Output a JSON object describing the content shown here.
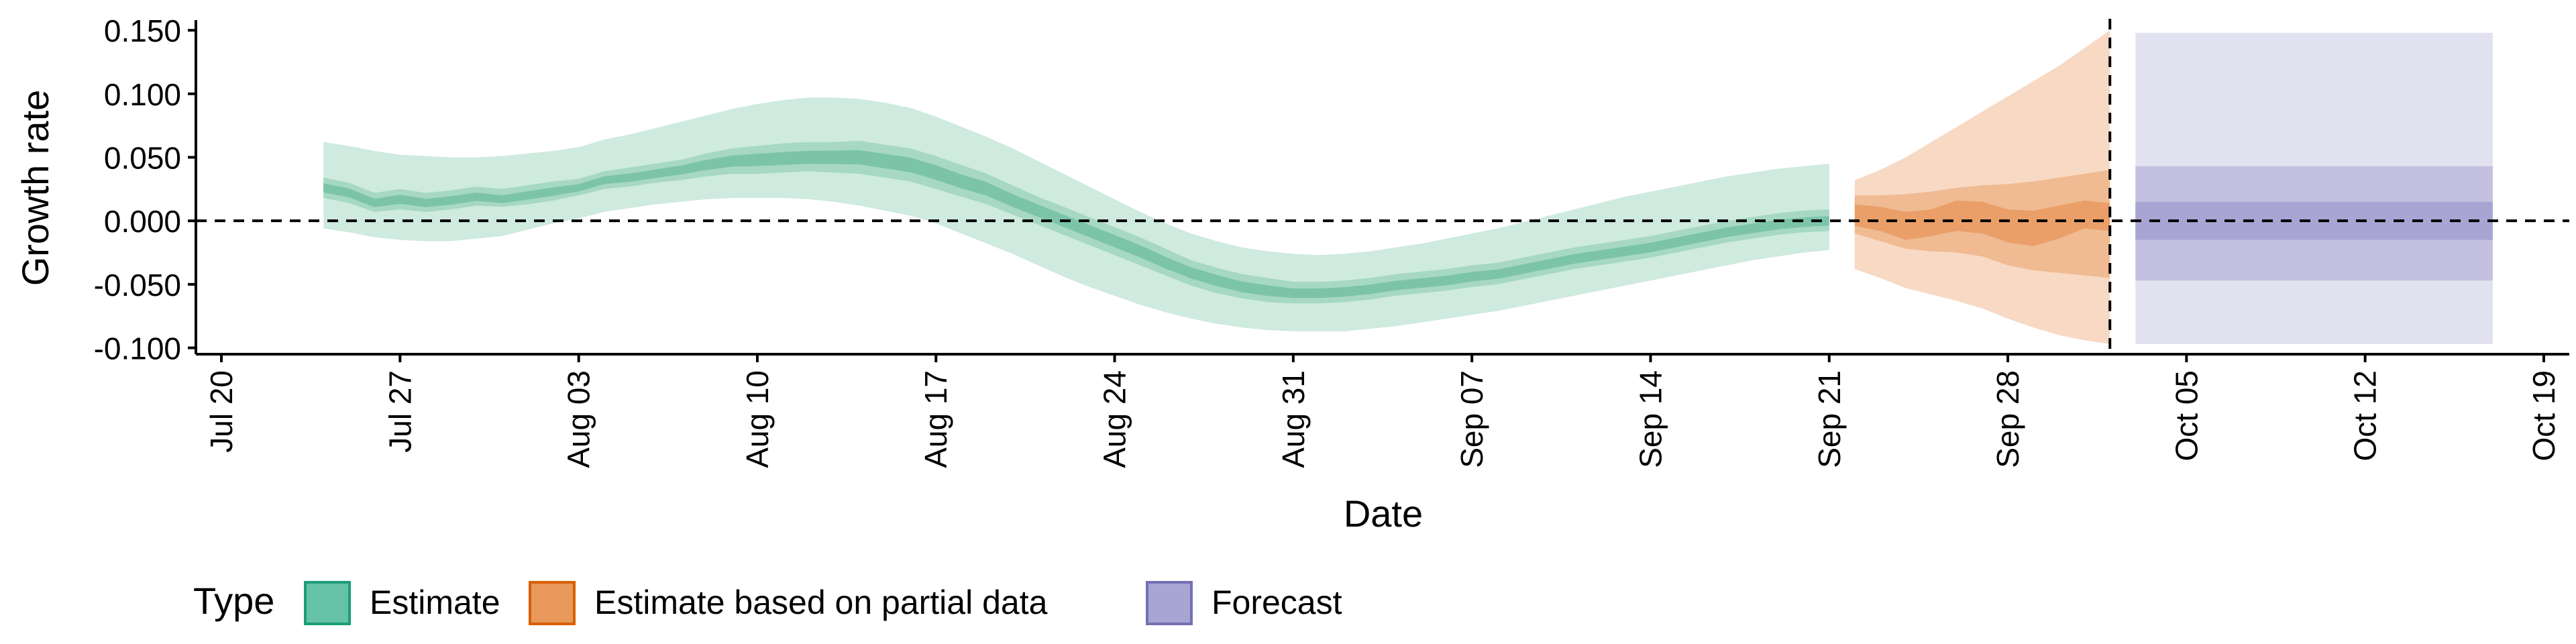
{
  "chart_data": {
    "type": "area",
    "xlabel": "Date",
    "ylabel": "Growth rate",
    "ylim": [
      -0.105,
      0.158
    ],
    "y_ticks": [
      -0.1,
      -0.05,
      0.0,
      0.05,
      0.1,
      0.15
    ],
    "y_tick_labels": [
      "-0.100",
      "-0.050",
      "0.000",
      "0.050",
      "0.100",
      "0.150"
    ],
    "x_ticks": [
      "2020-07-20",
      "2020-07-27",
      "2020-08-03",
      "2020-08-10",
      "2020-08-17",
      "2020-08-24",
      "2020-08-31",
      "2020-09-07",
      "2020-09-14",
      "2020-09-21",
      "2020-09-28",
      "2020-10-05",
      "2020-10-12",
      "2020-10-19"
    ],
    "x_tick_labels": [
      "Jul 20",
      "Jul 27",
      "Aug 03",
      "Aug 10",
      "Aug 17",
      "Aug 24",
      "Aug 31",
      "Sep 07",
      "Sep 14",
      "Sep 21",
      "Sep 28",
      "Oct 05",
      "Oct 12",
      "Oct 19"
    ],
    "xlim": [
      "2020-07-19",
      "2020-10-20"
    ],
    "reference_lines": {
      "horizontal_y": 0,
      "vertical_x": "2020-10-02",
      "style": "dashed"
    },
    "grid": false,
    "legend": {
      "title": "Type",
      "placement": "bottom-left",
      "entries": [
        {
          "label": "Estimate",
          "color": "#66c2a5",
          "border": "#1b9e77"
        },
        {
          "label": "Estimate based on partial data",
          "color": "#e9995b",
          "border": "#d95f02"
        },
        {
          "label": "Forecast",
          "color": "#a9a5d3",
          "border": "#7570b3"
        }
      ]
    },
    "series": [
      {
        "name": "Estimate",
        "colors": {
          "outer": "#cfeadf",
          "mid": "#a6d8c4",
          "inner": "#7cc4a9"
        },
        "x": [
          "2020-07-24",
          "2020-07-25",
          "2020-07-26",
          "2020-07-27",
          "2020-07-28",
          "2020-07-29",
          "2020-07-30",
          "2020-07-31",
          "2020-08-01",
          "2020-08-02",
          "2020-08-03",
          "2020-08-04",
          "2020-08-05",
          "2020-08-06",
          "2020-08-07",
          "2020-08-08",
          "2020-08-09",
          "2020-08-10",
          "2020-08-11",
          "2020-08-12",
          "2020-08-13",
          "2020-08-14",
          "2020-08-15",
          "2020-08-16",
          "2020-08-17",
          "2020-08-18",
          "2020-08-19",
          "2020-08-20",
          "2020-08-21",
          "2020-08-22",
          "2020-08-23",
          "2020-08-24",
          "2020-08-25",
          "2020-08-26",
          "2020-08-27",
          "2020-08-28",
          "2020-08-29",
          "2020-08-30",
          "2020-08-31",
          "2020-09-01",
          "2020-09-02",
          "2020-09-03",
          "2020-09-04",
          "2020-09-05",
          "2020-09-06",
          "2020-09-07",
          "2020-09-08",
          "2020-09-09",
          "2020-09-10",
          "2020-09-11",
          "2020-09-12",
          "2020-09-13",
          "2020-09-14",
          "2020-09-15",
          "2020-09-16",
          "2020-09-17",
          "2020-09-18",
          "2020-09-19",
          "2020-09-20",
          "2020-09-21"
        ],
        "median": [
          0.026,
          0.022,
          0.014,
          0.017,
          0.014,
          0.016,
          0.019,
          0.017,
          0.02,
          0.023,
          0.026,
          0.032,
          0.034,
          0.037,
          0.04,
          0.044,
          0.047,
          0.048,
          0.049,
          0.05,
          0.05,
          0.05,
          0.047,
          0.044,
          0.038,
          0.031,
          0.025,
          0.016,
          0.008,
          0.0,
          -0.008,
          -0.016,
          -0.024,
          -0.033,
          -0.041,
          -0.047,
          -0.052,
          -0.055,
          -0.057,
          -0.057,
          -0.056,
          -0.054,
          -0.051,
          -0.049,
          -0.047,
          -0.044,
          -0.042,
          -0.038,
          -0.034,
          -0.03,
          -0.027,
          -0.024,
          -0.021,
          -0.017,
          -0.013,
          -0.009,
          -0.006,
          -0.003,
          -0.001,
          0.0
        ],
        "q25": [
          0.018,
          0.014,
          0.007,
          0.009,
          0.007,
          0.009,
          0.012,
          0.011,
          0.013,
          0.016,
          0.02,
          0.025,
          0.027,
          0.03,
          0.032,
          0.035,
          0.037,
          0.037,
          0.038,
          0.039,
          0.038,
          0.037,
          0.034,
          0.031,
          0.025,
          0.019,
          0.013,
          0.005,
          -0.003,
          -0.011,
          -0.019,
          -0.027,
          -0.035,
          -0.043,
          -0.051,
          -0.057,
          -0.061,
          -0.064,
          -0.065,
          -0.065,
          -0.064,
          -0.062,
          -0.059,
          -0.057,
          -0.055,
          -0.052,
          -0.05,
          -0.046,
          -0.042,
          -0.038,
          -0.035,
          -0.032,
          -0.029,
          -0.025,
          -0.021,
          -0.017,
          -0.014,
          -0.011,
          -0.009,
          -0.008
        ],
        "q75": [
          0.034,
          0.03,
          0.022,
          0.025,
          0.022,
          0.024,
          0.027,
          0.025,
          0.028,
          0.031,
          0.033,
          0.039,
          0.042,
          0.045,
          0.048,
          0.053,
          0.057,
          0.059,
          0.061,
          0.062,
          0.062,
          0.063,
          0.06,
          0.057,
          0.051,
          0.044,
          0.037,
          0.028,
          0.019,
          0.011,
          0.003,
          -0.005,
          -0.013,
          -0.022,
          -0.031,
          -0.037,
          -0.042,
          -0.045,
          -0.048,
          -0.048,
          -0.047,
          -0.045,
          -0.042,
          -0.04,
          -0.038,
          -0.035,
          -0.033,
          -0.029,
          -0.025,
          -0.021,
          -0.018,
          -0.015,
          -0.012,
          -0.008,
          -0.004,
          0.0,
          0.003,
          0.006,
          0.008,
          0.009
        ],
        "q05": [
          -0.006,
          -0.009,
          -0.013,
          -0.015,
          -0.016,
          -0.016,
          -0.014,
          -0.012,
          -0.007,
          -0.002,
          0.002,
          0.007,
          0.01,
          0.013,
          0.015,
          0.017,
          0.018,
          0.018,
          0.018,
          0.017,
          0.015,
          0.012,
          0.008,
          0.004,
          -0.002,
          -0.01,
          -0.018,
          -0.026,
          -0.035,
          -0.044,
          -0.052,
          -0.059,
          -0.066,
          -0.072,
          -0.077,
          -0.081,
          -0.084,
          -0.086,
          -0.087,
          -0.087,
          -0.087,
          -0.085,
          -0.083,
          -0.08,
          -0.077,
          -0.074,
          -0.071,
          -0.067,
          -0.063,
          -0.059,
          -0.055,
          -0.051,
          -0.047,
          -0.043,
          -0.039,
          -0.035,
          -0.031,
          -0.028,
          -0.025,
          -0.023
        ],
        "q95": [
          0.062,
          0.059,
          0.055,
          0.052,
          0.051,
          0.05,
          0.05,
          0.051,
          0.053,
          0.055,
          0.058,
          0.064,
          0.068,
          0.073,
          0.078,
          0.083,
          0.088,
          0.092,
          0.095,
          0.097,
          0.097,
          0.096,
          0.093,
          0.089,
          0.082,
          0.074,
          0.066,
          0.057,
          0.047,
          0.037,
          0.027,
          0.017,
          0.007,
          -0.002,
          -0.01,
          -0.016,
          -0.021,
          -0.024,
          -0.026,
          -0.027,
          -0.026,
          -0.024,
          -0.021,
          -0.018,
          -0.014,
          -0.01,
          -0.006,
          -0.001,
          0.004,
          0.009,
          0.014,
          0.019,
          0.023,
          0.027,
          0.031,
          0.035,
          0.038,
          0.041,
          0.043,
          0.045
        ]
      },
      {
        "name": "Estimate based on partial data",
        "colors": {
          "outer": "#f8d9c4",
          "mid": "#f0bb92",
          "inner": "#ea9f69"
        },
        "x": [
          "2020-09-22",
          "2020-09-23",
          "2020-09-24",
          "2020-09-25",
          "2020-09-26",
          "2020-09-27",
          "2020-09-28",
          "2020-09-29",
          "2020-09-30",
          "2020-10-01",
          "2020-10-02"
        ],
        "median": [
          0.004,
          0.001,
          -0.004,
          -0.002,
          0.004,
          0.003,
          -0.004,
          -0.006,
          -0.002,
          0.004,
          0.002
        ],
        "q25": [
          -0.004,
          -0.008,
          -0.015,
          -0.012,
          -0.008,
          -0.01,
          -0.017,
          -0.02,
          -0.014,
          -0.006,
          -0.008
        ],
        "q75": [
          0.013,
          0.011,
          0.007,
          0.009,
          0.016,
          0.015,
          0.009,
          0.008,
          0.012,
          0.016,
          0.014
        ],
        "q05": [
          -0.027,
          -0.034,
          -0.043,
          -0.047,
          -0.049,
          -0.053,
          -0.062,
          -0.067,
          -0.071,
          -0.075,
          -0.079
        ],
        "q95": [
          0.02,
          0.028,
          0.035,
          0.045,
          0.056,
          0.066,
          0.077,
          0.089,
          0.101,
          0.116,
          0.133
        ],
        "q05_lower": [
          -0.038,
          -0.045,
          -0.053,
          -0.058,
          -0.063,
          -0.069,
          -0.077,
          -0.084,
          -0.09,
          -0.094,
          -0.097
        ],
        "q95_upper": [
          0.032,
          0.04,
          0.05,
          0.062,
          0.074,
          0.086,
          0.098,
          0.11,
          0.122,
          0.136,
          0.15
        ],
        "q50_lower": [
          -0.01,
          -0.016,
          -0.022,
          -0.024,
          -0.025,
          -0.028,
          -0.035,
          -0.039,
          -0.041,
          -0.043,
          -0.045
        ],
        "q50_upper": [
          0.02,
          0.02,
          0.021,
          0.023,
          0.026,
          0.028,
          0.029,
          0.031,
          0.034,
          0.037,
          0.04
        ]
      },
      {
        "name": "Forecast",
        "colors": {
          "outer": "#e2e1ef",
          "mid": "#c4c1e0",
          "inner": "#a9a5d3"
        },
        "x": [
          "2020-10-03",
          "2020-10-17"
        ],
        "median": [
          0.0,
          0.0
        ],
        "q25": [
          -0.015,
          -0.015
        ],
        "q75": [
          0.015,
          0.015
        ],
        "q05": [
          -0.047,
          -0.047
        ],
        "q95": [
          0.043,
          0.043
        ],
        "q05_lower": [
          -0.097,
          -0.097
        ],
        "q95_upper": [
          0.148,
          0.148
        ]
      }
    ]
  }
}
